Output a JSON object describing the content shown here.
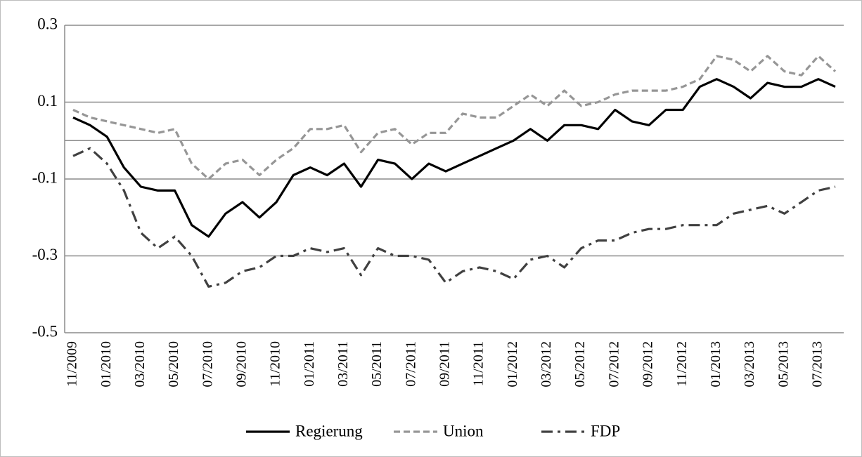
{
  "chart_data": {
    "type": "line",
    "categories": [
      "11/2009",
      null,
      "01/2010",
      null,
      "03/2010",
      null,
      "05/2010",
      null,
      "07/2010",
      null,
      "09/2010",
      null,
      "11/2010",
      null,
      "01/2011",
      null,
      "03/2011",
      null,
      "05/2011",
      null,
      "07/2011",
      null,
      "09/2011",
      null,
      "11/2011",
      null,
      "01/2012",
      null,
      "03/2012",
      null,
      "05/2012",
      null,
      "07/2012",
      null,
      "09/2012",
      null,
      "11/2012",
      null,
      "01/2013",
      null,
      "03/2013",
      null,
      "05/2013",
      null,
      "07/2013",
      null
    ],
    "series": [
      {
        "name": "Regierung",
        "color": "#000000",
        "dash": "solid",
        "values": [
          0.06,
          0.04,
          0.01,
          -0.07,
          -0.12,
          -0.13,
          -0.13,
          -0.22,
          -0.25,
          -0.19,
          -0.16,
          -0.2,
          -0.16,
          -0.09,
          -0.07,
          -0.09,
          -0.06,
          -0.12,
          -0.05,
          -0.06,
          -0.1,
          -0.06,
          -0.08,
          -0.06,
          -0.04,
          -0.02,
          0.0,
          0.03,
          0.0,
          0.04,
          0.04,
          0.03,
          0.08,
          0.05,
          0.04,
          0.08,
          0.08,
          0.14,
          0.16,
          0.14,
          0.11,
          0.15,
          0.14,
          0.14,
          0.16,
          0.14
        ]
      },
      {
        "name": "Union",
        "color": "#969696",
        "dash": "dashed",
        "values": [
          0.08,
          0.06,
          0.05,
          0.04,
          0.03,
          0.02,
          0.03,
          -0.06,
          -0.1,
          -0.06,
          -0.05,
          -0.09,
          -0.05,
          -0.02,
          0.03,
          0.03,
          0.04,
          -0.03,
          0.02,
          0.03,
          -0.01,
          0.02,
          0.02,
          0.07,
          0.06,
          0.06,
          0.09,
          0.12,
          0.09,
          0.13,
          0.09,
          0.1,
          0.12,
          0.13,
          0.13,
          0.13,
          0.14,
          0.16,
          0.22,
          0.21,
          0.18,
          0.22,
          0.18,
          0.17,
          0.22,
          0.18
        ]
      },
      {
        "name": "FDP",
        "color": "#404040",
        "dash": "dashdot",
        "values": [
          -0.04,
          -0.02,
          -0.06,
          -0.13,
          -0.24,
          -0.28,
          -0.25,
          -0.3,
          -0.38,
          -0.37,
          -0.34,
          -0.33,
          -0.3,
          -0.3,
          -0.28,
          -0.29,
          -0.28,
          -0.35,
          -0.28,
          -0.3,
          -0.3,
          -0.31,
          -0.37,
          -0.34,
          -0.33,
          -0.34,
          -0.36,
          -0.31,
          -0.3,
          -0.33,
          -0.28,
          -0.26,
          -0.26,
          -0.24,
          -0.23,
          -0.23,
          -0.22,
          -0.22,
          -0.22,
          -0.19,
          -0.18,
          -0.17,
          -0.19,
          -0.16,
          -0.13,
          -0.12
        ]
      }
    ],
    "ylim": [
      -0.5,
      0.3
    ],
    "yticks": [
      -0.5,
      -0.3,
      -0.1,
      0.1,
      0.3
    ],
    "grid": true,
    "legend": "bottom"
  }
}
